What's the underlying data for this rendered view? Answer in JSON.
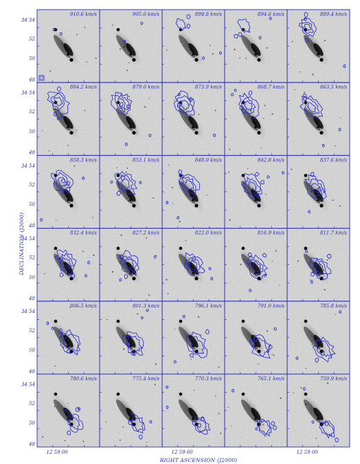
{
  "figure": {
    "x_axis_title": "RIGHT ASCENSION (J2000)",
    "y_axis_title": "DECLINATION (J2000)",
    "y_ticks": [
      "34 54",
      "52",
      "50",
      "48"
    ],
    "x_tick": "12 59 00",
    "grid": {
      "rows": 6,
      "cols": 5
    },
    "velocities": [
      "910.6 km/s",
      "905.0 km/s",
      "899.8 km/s",
      "894.6 km/s",
      "889.4 km/s",
      "884.2 km/s",
      "879.0 km/s",
      "873.9 km/s",
      "868.7 km/s",
      "863.5 km/s",
      "858.3 km/s",
      "853.1 km/s",
      "848.0 km/s",
      "842.8 km/s",
      "837.6 km/s",
      "832.4 km/s",
      "827.2 km/s",
      "822.0 km/s",
      "816.9 km/s",
      "811.7 km/s",
      "806.5 km/s",
      "801.3 km/s",
      "796.1 km/s",
      "791.0 km/s",
      "785.8 km/s",
      "780.6 km/s",
      "775.4 km/s",
      "770.3 km/s",
      "765.1 km/s",
      "759.9 km/s"
    ],
    "colors": {
      "frame": "#2b2bb5",
      "contour": "#2828c8",
      "galaxy": "#0a0a0a"
    }
  }
}
